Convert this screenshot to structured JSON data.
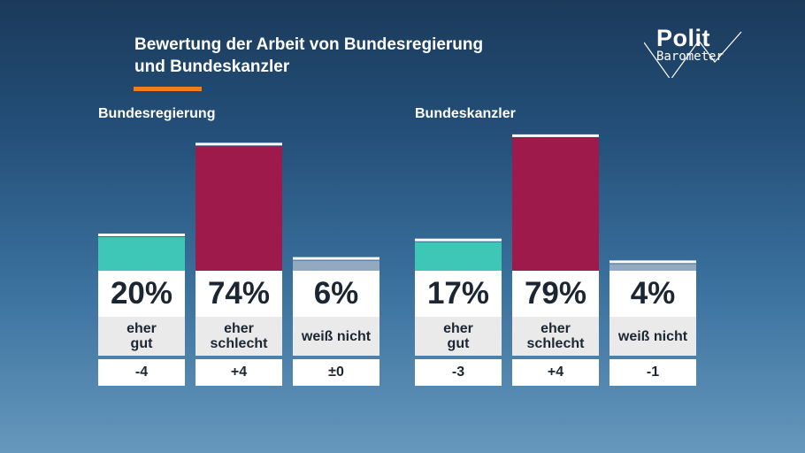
{
  "title": "Bewertung der Arbeit von Bundesregierung\nund Bundeskanzler",
  "logo": {
    "line1": "Polit",
    "line2": "Barometer"
  },
  "colors": {
    "accent": "#f07d1e",
    "eher_gut": "#3ec6b7",
    "eher_schlecht": "#9e1a4a",
    "weiss_nicht": "#93a9bf",
    "bar_top": "#ffffff"
  },
  "chart_data": [
    {
      "type": "bar",
      "title": "Bundesregierung",
      "categories": [
        "eher\ngut",
        "eher\nschlecht",
        "weiß nicht"
      ],
      "values": [
        20,
        74,
        6
      ],
      "value_labels": [
        "20%",
        "74%",
        "6%"
      ],
      "changes": [
        "-4",
        "+4",
        "±0"
      ],
      "colors": [
        "#3ec6b7",
        "#9e1a4a",
        "#93a9bf"
      ],
      "ylim": [
        0,
        100
      ]
    },
    {
      "type": "bar",
      "title": "Bundeskanzler",
      "categories": [
        "eher\ngut",
        "eher\nschlecht",
        "weiß nicht"
      ],
      "values": [
        17,
        79,
        4
      ],
      "value_labels": [
        "17%",
        "79%",
        "4%"
      ],
      "changes": [
        "-3",
        "+4",
        "-1"
      ],
      "colors": [
        "#3ec6b7",
        "#9e1a4a",
        "#93a9bf"
      ],
      "ylim": [
        0,
        100
      ]
    }
  ]
}
